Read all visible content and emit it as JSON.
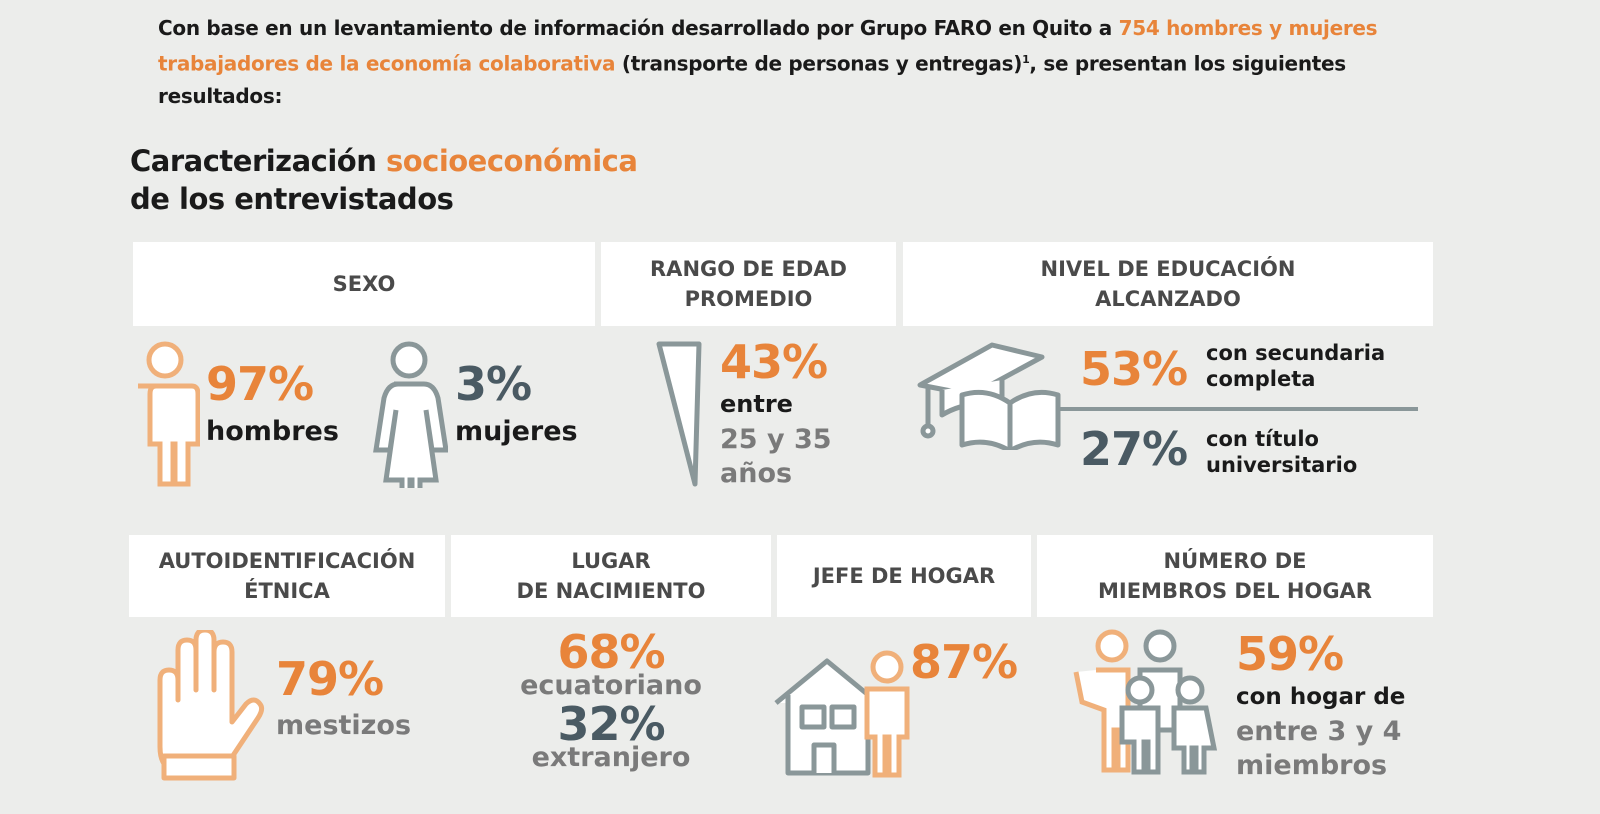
{
  "intro": {
    "part1": "Con base en un levantamiento de información desarrollado por Grupo FARO en Quito a ",
    "highlight": "754 hombres y mujeres trabajadores de la economía colaborativa",
    "part2": " (transporte de personas y entregas)",
    "footnote": "1",
    "part3": ", se presentan los siguientes resultados:"
  },
  "title": {
    "part1": "Caracterización ",
    "highlight": "socioeconómica",
    "line2": "de los entrevistados"
  },
  "colors": {
    "accent": "#e8843a",
    "slate": "#4a5a63",
    "icon_gray": "#8a9799",
    "icon_orange": "#f0b07a",
    "background": "#ecedeb"
  },
  "sexo": {
    "header": "SEXO",
    "men_pct": "97%",
    "men_label": "hombres",
    "women_pct": "3%",
    "women_label": "mujeres",
    "icons": [
      "man-icon",
      "woman-icon"
    ]
  },
  "edad": {
    "header_l1": "RANGO DE EDAD",
    "header_l2": "PROMEDIO",
    "pct": "43%",
    "l1": "entre",
    "l2": "25 y 35",
    "l3": "años",
    "icon": "wedge-icon"
  },
  "educacion": {
    "header_l1": "NIVEL DE EDUCACIÓN",
    "header_l2": "ALCANZADO",
    "pct1": "53%",
    "label1_l1": "con secundaria",
    "label1_l2": "completa",
    "pct2": "27%",
    "label2_l1": "con título",
    "label2_l2": "universitario",
    "icon": "graduation-book-icon"
  },
  "etnica": {
    "header_l1": "AUTOIDENTIFICACIÓN",
    "header_l2": "ÉTNICA",
    "pct": "79%",
    "label": "mestizos",
    "icon": "hand-icon"
  },
  "nacimiento": {
    "header_l1": "LUGAR",
    "header_l2": "DE NACIMIENTO",
    "pct1": "68%",
    "label1": "ecuatoriano",
    "pct2": "32%",
    "label2": "extranjero"
  },
  "jefe": {
    "header": "JEFE DE HOGAR",
    "pct": "87%",
    "icon": "house-person-icon"
  },
  "miembros": {
    "header_l1": "NÚMERO DE",
    "header_l2": "MIEMBROS DEL HOGAR",
    "pct": "59%",
    "l1": "con hogar de",
    "l2": "entre 3 y 4",
    "l3": "miembros",
    "icon": "family-icon"
  }
}
